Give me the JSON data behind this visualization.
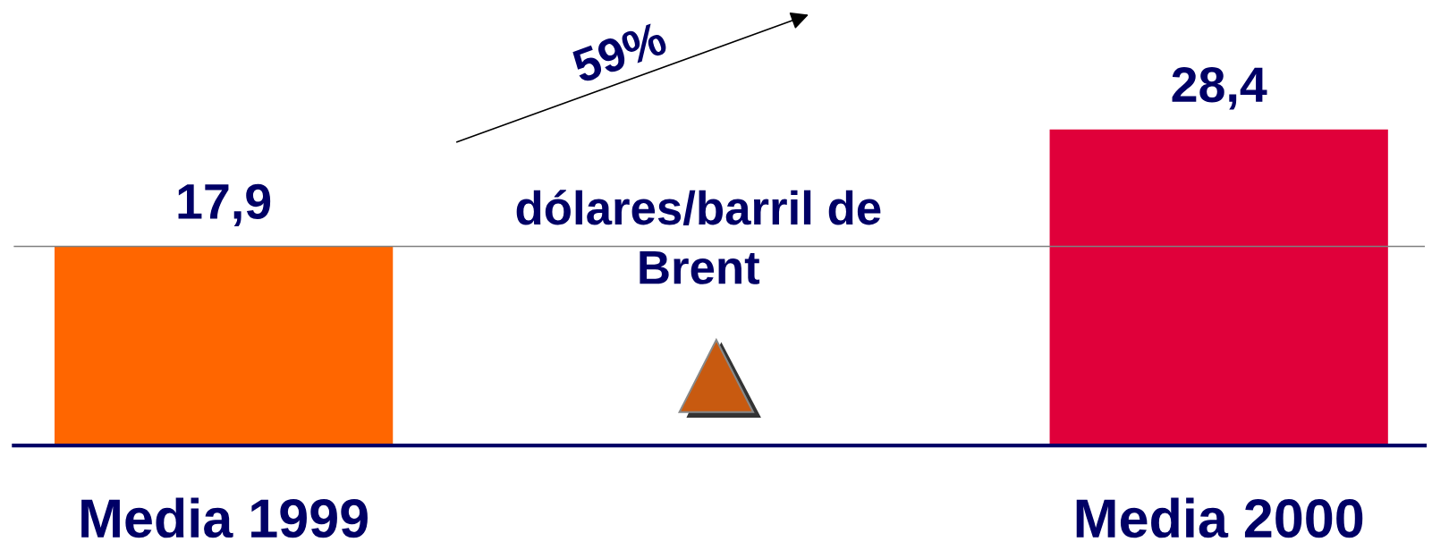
{
  "chart_data": {
    "type": "bar",
    "categories": [
      "Media 1999",
      "Media 2000"
    ],
    "values": [
      17.9,
      28.4
    ],
    "colors": [
      "#ff6600",
      "#e0003a"
    ],
    "value_labels": [
      "17,9",
      "28,4"
    ],
    "ref_lines": [
      {
        "axis": "y",
        "value": 17.9,
        "color": "#808080"
      }
    ],
    "annotations": [
      "59%",
      "dólares/barril de\nBrent"
    ],
    "grid": false,
    "tick_labels": "x"
  }
}
